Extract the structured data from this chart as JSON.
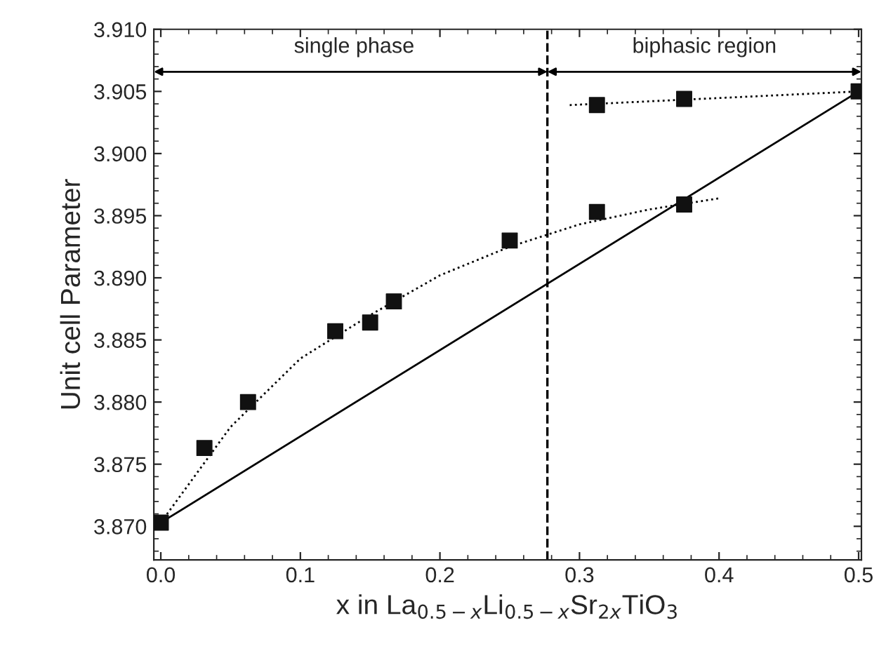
{
  "chart_data": {
    "type": "scatter",
    "xlabel": "x in La$_{0.5−x}$Li$_{0.5−x}$Sr$_{2x}$TiO$_{3}$",
    "ylabel": "Unit cell Parameter",
    "xlim": [
      -0.005,
      0.502
    ],
    "ylim": [
      3.8673,
      3.91
    ],
    "xticks": [
      {
        "value": 0.0,
        "label": "0.0"
      },
      {
        "value": 0.1,
        "label": "0.1"
      },
      {
        "value": 0.2,
        "label": "0.2"
      },
      {
        "value": 0.3,
        "label": "0.3"
      },
      {
        "value": 0.4,
        "label": "0.4"
      },
      {
        "value": 0.5,
        "label": "0.5"
      }
    ],
    "yticks": [
      {
        "value": 3.87,
        "label": "3.870"
      },
      {
        "value": 3.875,
        "label": "3.875"
      },
      {
        "value": 3.88,
        "label": "3.880"
      },
      {
        "value": 3.885,
        "label": "3.885"
      },
      {
        "value": 3.89,
        "label": "3.890"
      },
      {
        "value": 3.895,
        "label": "3.895"
      },
      {
        "value": 3.9,
        "label": "3.900"
      },
      {
        "value": 3.905,
        "label": "3.905"
      },
      {
        "value": 3.91,
        "label": "3.910"
      }
    ],
    "grid": false,
    "legend": false,
    "series": [
      {
        "type": "line",
        "color": "#000000",
        "line_style": "dotted",
        "marker": "none",
        "x": [
          0,
          0.05,
          0.1,
          0.15,
          0.2,
          0.25,
          0.3,
          0.35,
          0.4
        ],
        "values": [
          3.8703,
          3.878,
          3.8835,
          3.887,
          3.8902,
          3.8925,
          3.8943,
          3.8955,
          3.8964
        ]
      },
      {
        "type": "line",
        "color": "#000000",
        "line_style": "dotted",
        "marker": "none",
        "x": [
          0.293,
          0.5
        ],
        "values": [
          3.9039,
          3.905
        ]
      },
      {
        "type": "line",
        "color": "#000000",
        "line_style": "solid",
        "marker": "none",
        "x": [
          0,
          0.5
        ],
        "values": [
          3.8703,
          3.905
        ]
      },
      {
        "color": "#111111",
        "marker": "square",
        "x": [
          0,
          0.03125,
          0.0625,
          0.125,
          0.15,
          0.167,
          0.25,
          0.3125,
          0.375,
          0.5,
          0.3125,
          0.375
        ],
        "values": [
          3.8703,
          3.8763,
          3.88,
          3.8857,
          3.8864,
          3.8881,
          3.893,
          3.8953,
          3.8959,
          3.905,
          3.9039,
          3.9044
        ]
      }
    ],
    "ref_lines": [
      {
        "axis": "x",
        "value": 0.277,
        "color": "#000000",
        "line_style": "dashed"
      }
    ],
    "annotations": [
      "single phase",
      "biphasic region"
    ]
  }
}
